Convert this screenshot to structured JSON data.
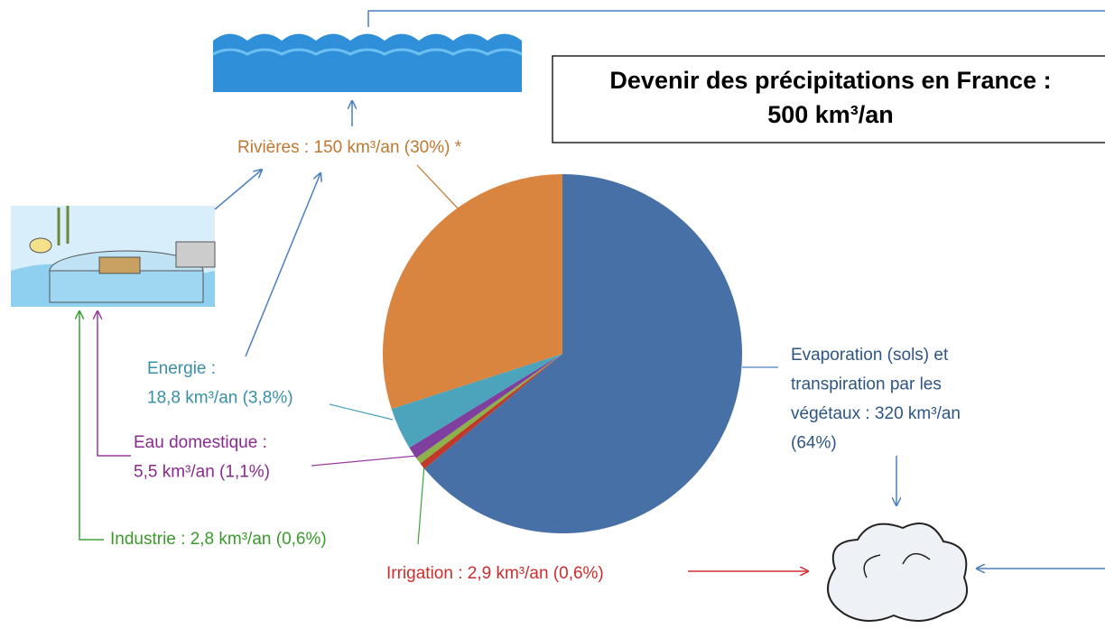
{
  "chart_data": {
    "type": "pie",
    "title": [
      "Devenir des précipitations en France :",
      "500 km³/an"
    ],
    "values": [
      64,
      0.6,
      0.6,
      1.1,
      3.8,
      30
    ],
    "colors": [
      "#4670a6",
      "#c0392b",
      "#8cb24a",
      "#7e3f9f",
      "#4ba4bb",
      "#d9843f"
    ],
    "value_labels": [
      [
        "Evaporation (sols) et",
        "transpiration par les",
        "végétaux : 320 km³/an",
        "(64%)"
      ],
      [
        "Irrigation : 2,9 km³/an (0,6%)"
      ],
      [
        "Industrie : 2,8 km³/an (0,6%)"
      ],
      [
        "Eau domestique  :",
        "5,5 km³/an (1,1%)"
      ],
      [
        "Energie  :",
        "18,8 km³/an (3,8%)"
      ],
      [
        "Rivières : 150 km³/an (30%) *"
      ]
    ]
  }
}
